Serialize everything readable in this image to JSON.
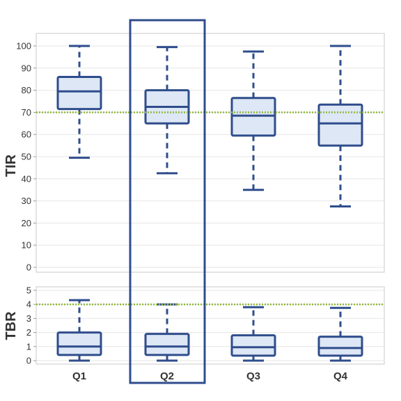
{
  "chart_data": [
    {
      "type": "box",
      "ylabel": "TIR",
      "ylim": [
        0,
        100
      ],
      "yticks": [
        0,
        10,
        20,
        30,
        40,
        50,
        60,
        70,
        80,
        90,
        100
      ],
      "categories": [
        "Q1",
        "Q2",
        "Q3",
        "Q4"
      ],
      "boxes": [
        {
          "min": 49.5,
          "q1": 71.5,
          "median": 79.5,
          "q3": 86,
          "max": 100
        },
        {
          "min": 42.5,
          "q1": 65,
          "median": 72.5,
          "q3": 80,
          "max": 99.5
        },
        {
          "min": 35,
          "q1": 59.5,
          "median": 68.5,
          "q3": 76.5,
          "max": 97.5
        },
        {
          "min": 27.5,
          "q1": 55,
          "median": 65,
          "q3": 73.5,
          "max": 100
        }
      ],
      "reference_line": 70,
      "grid": true,
      "highlight_category": "Q2"
    },
    {
      "type": "box",
      "ylabel": "TBR",
      "ylim": [
        0,
        5
      ],
      "yticks": [
        0,
        1,
        2,
        3,
        4,
        5
      ],
      "categories": [
        "Q1",
        "Q2",
        "Q3",
        "Q4"
      ],
      "boxes": [
        {
          "min": 0,
          "q1": 0.4,
          "median": 1.0,
          "q3": 2.0,
          "max": 4.3
        },
        {
          "min": 0,
          "q1": 0.4,
          "median": 1.0,
          "q3": 1.9,
          "max": 4.0
        },
        {
          "min": 0,
          "q1": 0.35,
          "median": 0.95,
          "q3": 1.8,
          "max": 3.8
        },
        {
          "min": 0,
          "q1": 0.35,
          "median": 0.9,
          "q3": 1.7,
          "max": 3.75
        }
      ],
      "reference_line": 4,
      "grid": true,
      "highlight_category": "Q2"
    }
  ],
  "colors": {
    "box_stroke": "#2f4d8c",
    "box_fill": "#dde7f5",
    "reference_line": "#8fb83a",
    "grid": "#e6e6e6",
    "frame": "#c8c8c8",
    "highlight": "#2f4d8c"
  }
}
